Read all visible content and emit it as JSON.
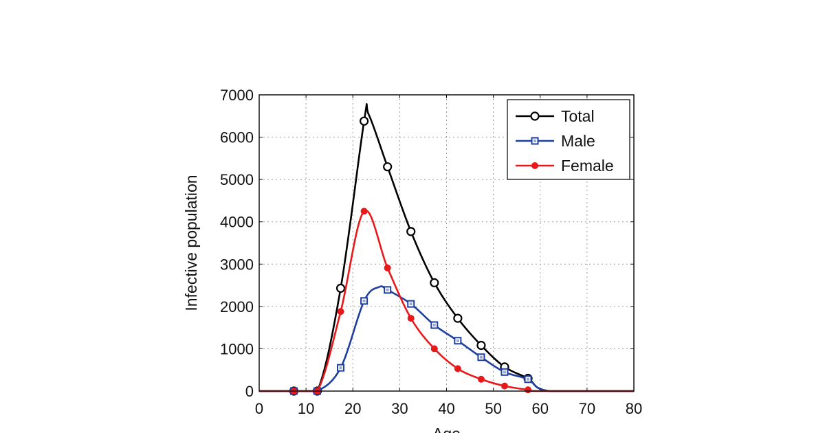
{
  "chart_data": {
    "type": "line",
    "title": "",
    "xlabel": "Age",
    "ylabel": "Infective population",
    "xlim": [
      0,
      80
    ],
    "ylim": [
      0,
      7000
    ],
    "grid": true,
    "legend_position": "top-right",
    "x_ticks": [
      "0",
      "10",
      "20",
      "30",
      "40",
      "50",
      "60",
      "70",
      "80"
    ],
    "y_ticks": [
      "0",
      "1000",
      "2000",
      "3000",
      "4000",
      "5000",
      "6000",
      "7000"
    ],
    "series": [
      {
        "name": "Total",
        "color": "#000000",
        "marker": "circle-open",
        "markers": [
          [
            7.4,
            0
          ],
          [
            12.4,
            0
          ],
          [
            17.4,
            2430
          ],
          [
            22.4,
            6380
          ],
          [
            27.4,
            5300
          ],
          [
            32.4,
            3770
          ],
          [
            37.4,
            2560
          ],
          [
            42.4,
            1720
          ],
          [
            47.4,
            1080
          ],
          [
            52.4,
            570
          ],
          [
            57.4,
            300
          ]
        ],
        "curve": [
          [
            0,
            0
          ],
          [
            7.4,
            0
          ],
          [
            12.4,
            0
          ],
          [
            17.4,
            2430
          ],
          [
            22.4,
            6380
          ],
          [
            23.4,
            6530
          ],
          [
            27.4,
            5300
          ],
          [
            32.4,
            3770
          ],
          [
            37.4,
            2560
          ],
          [
            42.4,
            1720
          ],
          [
            47.4,
            1080
          ],
          [
            52.4,
            570
          ],
          [
            57.4,
            300
          ],
          [
            62,
            0
          ],
          [
            80,
            0
          ]
        ]
      },
      {
        "name": "Male",
        "color": "#1f3fa0",
        "marker": "square-open",
        "markers": [
          [
            7.4,
            0
          ],
          [
            12.4,
            0
          ],
          [
            17.4,
            550
          ],
          [
            22.4,
            2130
          ],
          [
            27.4,
            2390
          ],
          [
            32.4,
            2060
          ],
          [
            37.4,
            1560
          ],
          [
            42.4,
            1190
          ],
          [
            47.4,
            800
          ],
          [
            52.4,
            450
          ],
          [
            57.4,
            280
          ]
        ],
        "curve": [
          [
            0,
            0
          ],
          [
            7.4,
            0
          ],
          [
            12.4,
            0
          ],
          [
            17.4,
            550
          ],
          [
            22.4,
            2130
          ],
          [
            25.6,
            2460
          ],
          [
            27.4,
            2390
          ],
          [
            32.4,
            2060
          ],
          [
            37.4,
            1560
          ],
          [
            42.4,
            1190
          ],
          [
            47.4,
            800
          ],
          [
            52.4,
            450
          ],
          [
            57.4,
            280
          ],
          [
            62,
            0
          ],
          [
            80,
            0
          ]
        ]
      },
      {
        "name": "Female",
        "color": "#e8191b",
        "marker": "circle-filled",
        "markers": [
          [
            7.4,
            0
          ],
          [
            12.4,
            0
          ],
          [
            17.4,
            1880
          ],
          [
            22.4,
            4250
          ],
          [
            27.4,
            2910
          ],
          [
            32.4,
            1720
          ],
          [
            37.4,
            1000
          ],
          [
            42.4,
            530
          ],
          [
            47.4,
            280
          ],
          [
            52.4,
            120
          ],
          [
            57.4,
            30
          ]
        ],
        "curve": [
          [
            0,
            0
          ],
          [
            7.4,
            0
          ],
          [
            12.4,
            0
          ],
          [
            17.4,
            1880
          ],
          [
            22.4,
            4250
          ],
          [
            27.4,
            2910
          ],
          [
            32.4,
            1720
          ],
          [
            37.4,
            1000
          ],
          [
            42.4,
            530
          ],
          [
            47.4,
            280
          ],
          [
            52.4,
            120
          ],
          [
            57.4,
            30
          ],
          [
            60,
            0
          ],
          [
            80,
            0
          ]
        ]
      }
    ]
  }
}
